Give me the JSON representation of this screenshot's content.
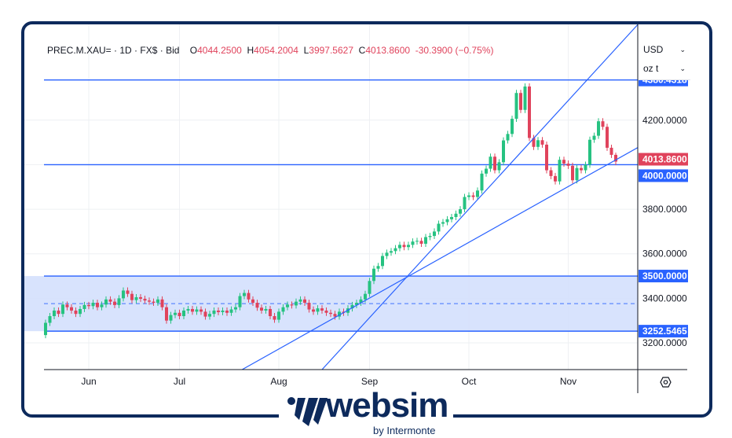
{
  "header": {
    "symbol": "PREC.M.XAU=",
    "interval": "1D",
    "source": "FX$",
    "price_type": "Bid",
    "open_label": "O",
    "open": "4044.2500",
    "high_label": "H",
    "high": "4054.2004",
    "low_label": "L",
    "low": "3997.5627",
    "close_label": "C",
    "close": "4013.8600",
    "change": "-30.3900 (−0.75%)"
  },
  "selectors": {
    "currency": "USD",
    "unit": "oz t"
  },
  "colors": {
    "up": "#26c281",
    "down": "#e0435c",
    "lines": "#2962ff",
    "zone": "#d4e0fd",
    "frame": "#0d2a5c",
    "last_price": "#e0435c"
  },
  "chart_data": {
    "type": "candlestick",
    "ylim": [
      3080,
      4630
    ],
    "yticks": [
      "3200.0000",
      "3400.0000",
      "3600.0000",
      "3800.0000",
      "4000.0000",
      "4200.0000"
    ],
    "xticks": [
      {
        "label": "Jun",
        "index": 10
      },
      {
        "label": "Jul",
        "index": 31
      },
      {
        "label": "Aug",
        "index": 54
      },
      {
        "label": "Sep",
        "index": 75
      },
      {
        "label": "Oct",
        "index": 98
      },
      {
        "label": "Nov",
        "index": 121
      }
    ],
    "closes": [
      3290,
      3320,
      3345,
      3330,
      3372,
      3360,
      3345,
      3330,
      3352,
      3370,
      3365,
      3380,
      3360,
      3372,
      3395,
      3385,
      3370,
      3400,
      3435,
      3420,
      3392,
      3405,
      3398,
      3390,
      3385,
      3380,
      3395,
      3360,
      3300,
      3325,
      3335,
      3320,
      3345,
      3352,
      3340,
      3350,
      3340,
      3318,
      3330,
      3345,
      3338,
      3345,
      3335,
      3350,
      3360,
      3410,
      3424,
      3395,
      3380,
      3358,
      3345,
      3352,
      3320,
      3304,
      3340,
      3360,
      3372,
      3368,
      3385,
      3395,
      3380,
      3350,
      3340,
      3355,
      3345,
      3335,
      3330,
      3318,
      3340,
      3335,
      3355,
      3370,
      3380,
      3395,
      3420,
      3478,
      3533,
      3545,
      3590,
      3605,
      3612,
      3625,
      3640,
      3630,
      3640,
      3655,
      3658,
      3645,
      3675,
      3680,
      3700,
      3735,
      3742,
      3755,
      3765,
      3780,
      3800,
      3855,
      3862,
      3855,
      3884,
      3960,
      3982,
      4036,
      3975,
      4011,
      4109,
      4138,
      4206,
      4322,
      4246,
      4351,
      4120,
      4080,
      4110,
      4090,
      3975,
      3949,
      3925,
      4022,
      4005,
      3995,
      3930,
      3985,
      3975,
      4000,
      4112,
      4130,
      4195,
      4170,
      4076,
      4044.25,
      4013.86
    ],
    "first_open": 3235,
    "last_high": 4054.2004,
    "last_low": 3997.5627,
    "levels": [
      {
        "value": 4380.4318,
        "label": "4380.4318",
        "style": "solid"
      },
      {
        "value": 4000.0,
        "label": "4000.0000",
        "style": "solid"
      },
      {
        "value": 3500.0,
        "label": "3500.0000",
        "style": "solid"
      },
      {
        "value": 3376.2733,
        "label": "",
        "style": "dashed"
      },
      {
        "value": 3252.5465,
        "label": "3252.5465",
        "style": "solid"
      }
    ],
    "zone": [
      3252.5465,
      3500.0
    ],
    "last_price": {
      "value": 4013.86,
      "label": "4013.8600"
    },
    "trendlines": [
      {
        "from": [
          64,
          3080
        ],
        "to": [
          134.4,
          4572
        ]
      },
      {
        "from": [
          45.5,
          3080
        ],
        "to": [
          137,
          4076
        ]
      }
    ]
  },
  "logo": {
    "word": "websim",
    "sub": "by Intermonte"
  }
}
